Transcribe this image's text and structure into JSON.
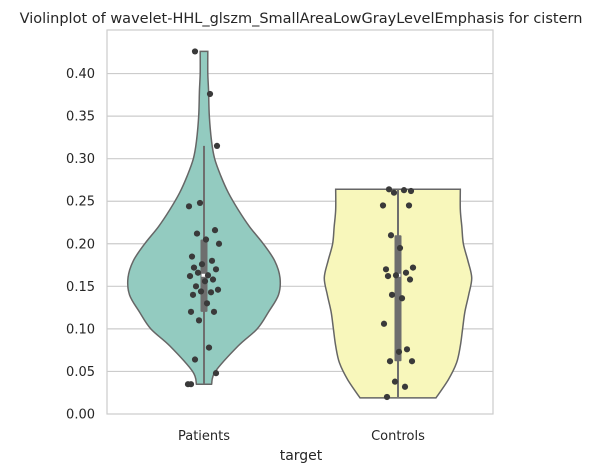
{
  "chart_data": {
    "type": "violin",
    "title": "Violinplot of wavelet-HHL_glszm_SmallAreaLowGrayLevelEmphasis for cistern",
    "xlabel": "target",
    "ylabel": "",
    "categories": [
      "Patients",
      "Controls"
    ],
    "ylim": [
      0.0,
      0.45
    ],
    "yticks": [
      0.0,
      0.05,
      0.1,
      0.15,
      0.2,
      0.25,
      0.3,
      0.35,
      0.4
    ],
    "ytick_labels": [
      "0.00",
      "0.05",
      "0.10",
      "0.15",
      "0.20",
      "0.25",
      "0.30",
      "0.35",
      "0.40"
    ],
    "grid": "horizontal",
    "colors": {
      "Patients": "#93cbc0",
      "Controls": "#f8f7bb",
      "outline": "#666666",
      "points": "#3a3a3a",
      "box": "#6e6e6e",
      "grid": "#cccccc"
    },
    "series": [
      {
        "name": "Patients",
        "points": [
          0.426,
          0.376,
          0.315,
          0.248,
          0.244,
          0.216,
          0.212,
          0.205,
          0.2,
          0.185,
          0.18,
          0.176,
          0.172,
          0.17,
          0.166,
          0.163,
          0.162,
          0.158,
          0.156,
          0.15,
          0.146,
          0.144,
          0.143,
          0.14,
          0.13,
          0.12,
          0.12,
          0.11,
          0.078,
          0.064,
          0.048,
          0.035,
          0.035
        ],
        "box": {
          "q1": 0.12,
          "median": 0.163,
          "q3": 0.205,
          "whisker_low": 0.035,
          "whisker_high": 0.315
        },
        "density": [
          [
            0.035,
            0.1
          ],
          [
            0.05,
            0.15
          ],
          [
            0.08,
            0.45
          ],
          [
            0.1,
            0.7
          ],
          [
            0.12,
            0.85
          ],
          [
            0.14,
            0.98
          ],
          [
            0.16,
            1.0
          ],
          [
            0.18,
            0.93
          ],
          [
            0.2,
            0.78
          ],
          [
            0.22,
            0.6
          ],
          [
            0.24,
            0.45
          ],
          [
            0.26,
            0.32
          ],
          [
            0.28,
            0.22
          ],
          [
            0.3,
            0.14
          ],
          [
            0.32,
            0.1
          ],
          [
            0.35,
            0.07
          ],
          [
            0.38,
            0.06
          ],
          [
            0.4,
            0.05
          ],
          [
            0.426,
            0.05
          ]
        ]
      },
      {
        "name": "Controls",
        "points": [
          0.264,
          0.263,
          0.262,
          0.26,
          0.245,
          0.245,
          0.21,
          0.195,
          0.172,
          0.17,
          0.166,
          0.163,
          0.162,
          0.158,
          0.14,
          0.136,
          0.106,
          0.076,
          0.073,
          0.062,
          0.062,
          0.038,
          0.032,
          0.02
        ],
        "box": {
          "q1": 0.062,
          "median": 0.163,
          "q3": 0.21,
          "whisker_low": 0.02,
          "whisker_high": 0.264
        },
        "density": [
          [
            0.019,
            0.5
          ],
          [
            0.04,
            0.66
          ],
          [
            0.06,
            0.77
          ],
          [
            0.08,
            0.82
          ],
          [
            0.1,
            0.85
          ],
          [
            0.12,
            0.88
          ],
          [
            0.14,
            0.93
          ],
          [
            0.16,
            0.97
          ],
          [
            0.18,
            0.92
          ],
          [
            0.2,
            0.86
          ],
          [
            0.22,
            0.84
          ],
          [
            0.24,
            0.82
          ],
          [
            0.264,
            0.82
          ]
        ]
      }
    ]
  }
}
